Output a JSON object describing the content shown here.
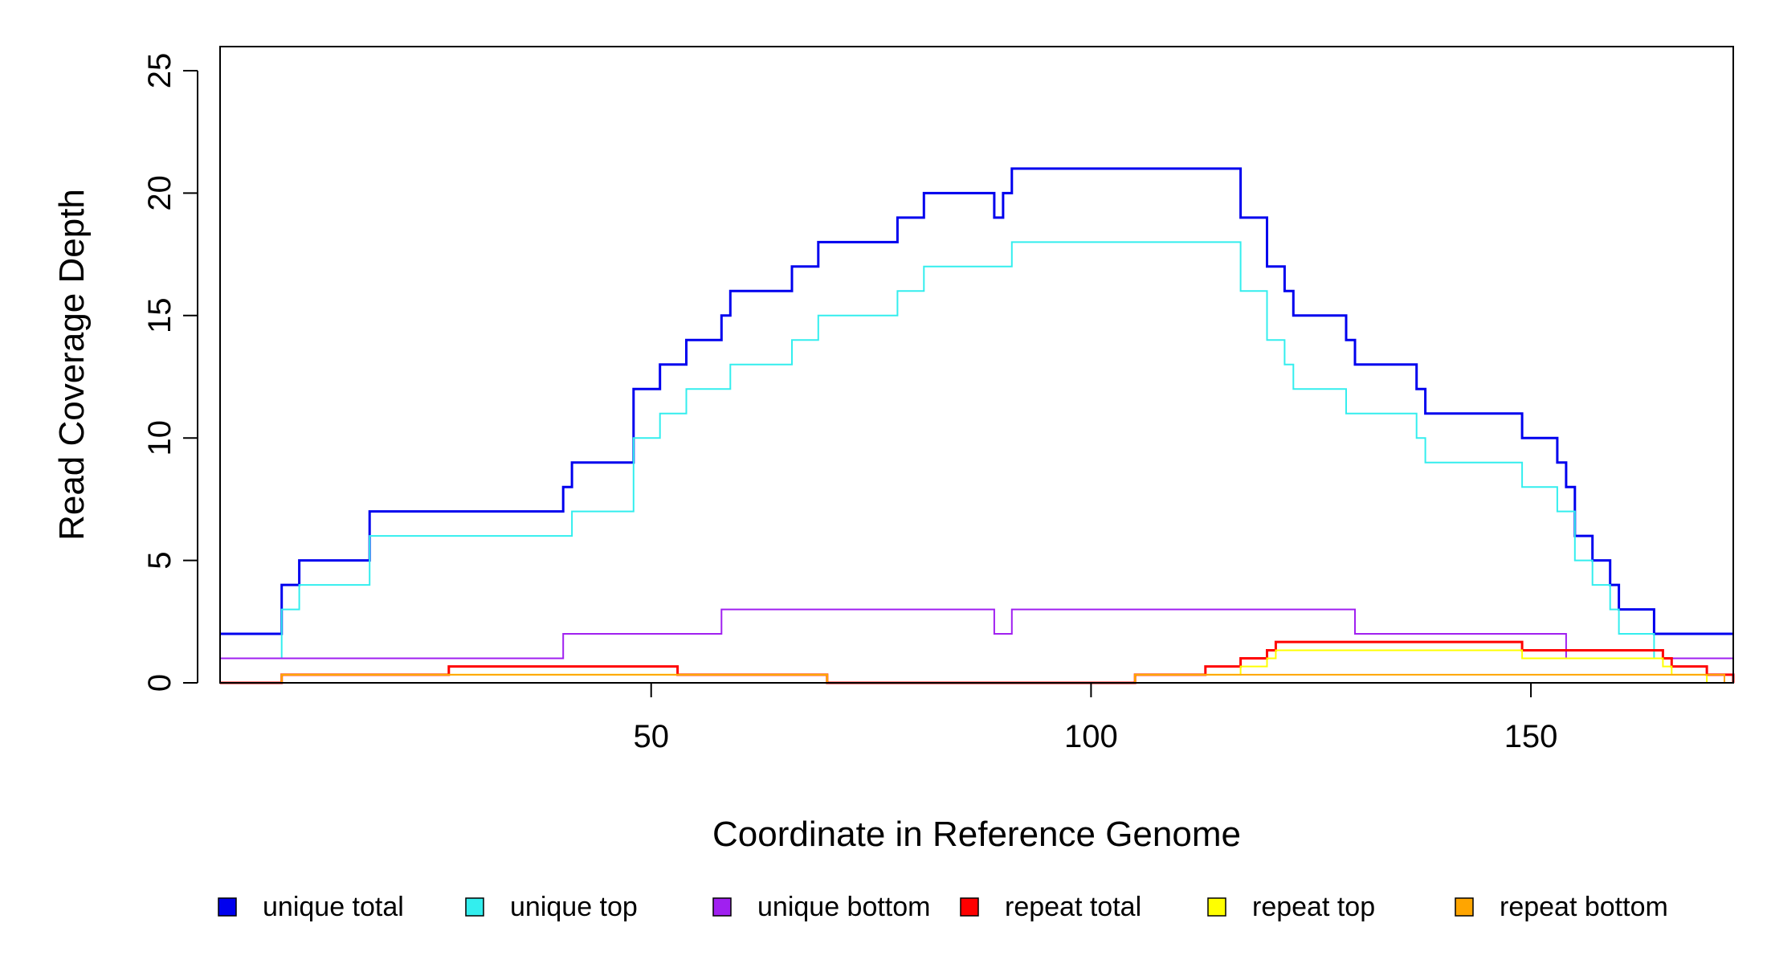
{
  "chart_data": {
    "type": "line",
    "step": true,
    "xlabel": "Coordinate in Reference Genome",
    "ylabel": "Read Coverage Depth",
    "xlim": [
      1,
      173
    ],
    "ylim": [
      0,
      25
    ],
    "xticks": [
      50,
      100,
      150
    ],
    "yticks": [
      0,
      5,
      10,
      15,
      20,
      25
    ],
    "grid": false,
    "legend_position": "bottom",
    "series": [
      {
        "name": "unique total",
        "color": "#0000ee",
        "line_weight": "thick",
        "points": [
          [
            1,
            2
          ],
          [
            8,
            4
          ],
          [
            10,
            5
          ],
          [
            18,
            7
          ],
          [
            40,
            8
          ],
          [
            41,
            9
          ],
          [
            48,
            12
          ],
          [
            51,
            13
          ],
          [
            54,
            14
          ],
          [
            58,
            15
          ],
          [
            59,
            16
          ],
          [
            66,
            17
          ],
          [
            69,
            18
          ],
          [
            78,
            19
          ],
          [
            81,
            20
          ],
          [
            89,
            19
          ],
          [
            90,
            20
          ],
          [
            91,
            21
          ],
          [
            117,
            19
          ],
          [
            120,
            17
          ],
          [
            122,
            16
          ],
          [
            123,
            15
          ],
          [
            129,
            14
          ],
          [
            130,
            13
          ],
          [
            137,
            12
          ],
          [
            138,
            11
          ],
          [
            149,
            10
          ],
          [
            153,
            9
          ],
          [
            154,
            8
          ],
          [
            155,
            6
          ],
          [
            157,
            5
          ],
          [
            159,
            4
          ],
          [
            160,
            3
          ],
          [
            164,
            2
          ],
          [
            173,
            2
          ]
        ]
      },
      {
        "name": "unique top",
        "color": "#33eeee",
        "line_weight": "thin",
        "points": [
          [
            1,
            1
          ],
          [
            8,
            3
          ],
          [
            10,
            4
          ],
          [
            18,
            6
          ],
          [
            41,
            7
          ],
          [
            48,
            10
          ],
          [
            51,
            11
          ],
          [
            54,
            12
          ],
          [
            59,
            13
          ],
          [
            66,
            14
          ],
          [
            69,
            15
          ],
          [
            78,
            16
          ],
          [
            81,
            17
          ],
          [
            91,
            18
          ],
          [
            117,
            16
          ],
          [
            120,
            14
          ],
          [
            122,
            13
          ],
          [
            123,
            12
          ],
          [
            129,
            11
          ],
          [
            137,
            10
          ],
          [
            138,
            9
          ],
          [
            149,
            8
          ],
          [
            153,
            7
          ],
          [
            155,
            5
          ],
          [
            157,
            4
          ],
          [
            159,
            3
          ],
          [
            160,
            2
          ],
          [
            164,
            1
          ],
          [
            173,
            1
          ]
        ]
      },
      {
        "name": "unique bottom",
        "color": "#a020f0",
        "line_weight": "thin",
        "points": [
          [
            1,
            1
          ],
          [
            40,
            2
          ],
          [
            58,
            3
          ],
          [
            89,
            2
          ],
          [
            91,
            3
          ],
          [
            130,
            2
          ],
          [
            154,
            1
          ],
          [
            173,
            1
          ]
        ]
      },
      {
        "name": "repeat total",
        "color": "#ff0000",
        "line_weight": "thick",
        "points": [
          [
            1,
            0
          ],
          [
            8,
            0.33
          ],
          [
            27,
            0.67
          ],
          [
            53,
            0.33
          ],
          [
            70,
            0
          ],
          [
            105,
            0.33
          ],
          [
            113,
            0.67
          ],
          [
            117,
            1
          ],
          [
            120,
            1.33
          ],
          [
            121,
            1.67
          ],
          [
            149,
            1.33
          ],
          [
            165,
            1
          ],
          [
            166,
            0.67
          ],
          [
            170,
            0.33
          ],
          [
            173,
            0
          ]
        ]
      },
      {
        "name": "repeat top",
        "color": "#ffff00",
        "line_weight": "thin",
        "points": [
          [
            1,
            0
          ],
          [
            8,
            0.33
          ],
          [
            27,
            0.33
          ],
          [
            53,
            0.33
          ],
          [
            70,
            0
          ],
          [
            105,
            0.33
          ],
          [
            113,
            0.33
          ],
          [
            117,
            0.67
          ],
          [
            120,
            1
          ],
          [
            121,
            1.33
          ],
          [
            149,
            1
          ],
          [
            165,
            0.67
          ],
          [
            166,
            0.33
          ],
          [
            170,
            0
          ],
          [
            173,
            0
          ]
        ]
      },
      {
        "name": "repeat bottom",
        "color": "#ffa500",
        "line_weight": "thin",
        "points": [
          [
            1,
            0
          ],
          [
            8,
            0.33
          ],
          [
            27,
            0.33
          ],
          [
            70,
            0
          ],
          [
            105,
            0.33
          ],
          [
            170,
            0.33
          ],
          [
            172,
            0
          ],
          [
            173,
            0
          ]
        ]
      }
    ]
  }
}
